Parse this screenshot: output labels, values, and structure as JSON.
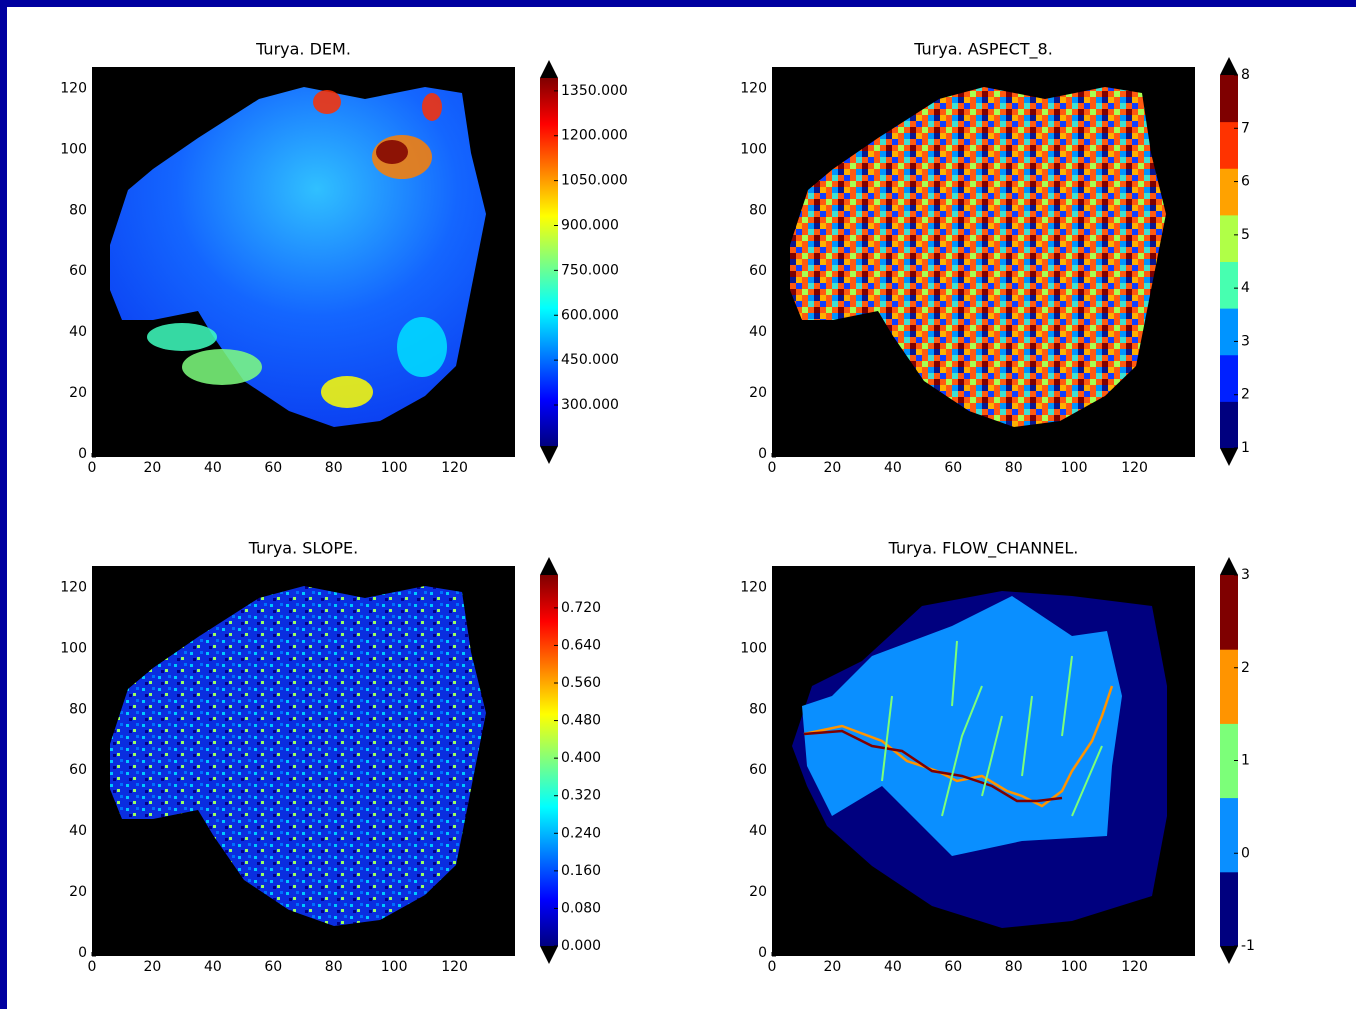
{
  "chart_data": [
    {
      "type": "heatmap",
      "title": "Turya. DEM.",
      "xlim": [
        0,
        140
      ],
      "ylim": [
        0,
        128
      ],
      "xticks": [
        0,
        20,
        40,
        60,
        80,
        100,
        120
      ],
      "yticks": [
        0,
        20,
        40,
        60,
        80,
        100,
        120
      ],
      "colorbar": {
        "lim": [
          163,
          1393
        ],
        "discrete": false,
        "colors": [
          "#00007f",
          "#0000ff",
          "#007fff",
          "#00ffff",
          "#7fff7f",
          "#ffff00",
          "#ff7f00",
          "#ff0000",
          "#7f0000"
        ],
        "ticks": [
          {
            "value": 300,
            "label": "300.000"
          },
          {
            "value": 450,
            "label": "450.000"
          },
          {
            "value": 600,
            "label": "600.000"
          },
          {
            "value": 750,
            "label": "750.000"
          },
          {
            "value": 900,
            "label": "900.000"
          },
          {
            "value": 1050,
            "label": "1050.000"
          },
          {
            "value": 1200,
            "label": "1200.000"
          },
          {
            "value": 1350,
            "label": "1350.000"
          }
        ]
      }
    },
    {
      "type": "heatmap",
      "title": "Turya. ASPECT_8.",
      "xlim": [
        0,
        140
      ],
      "ylim": [
        0,
        128
      ],
      "xticks": [
        0,
        20,
        40,
        60,
        80,
        100,
        120
      ],
      "yticks": [
        0,
        20,
        40,
        60,
        80,
        100,
        120
      ],
      "colorbar": {
        "lim": [
          1,
          8
        ],
        "discrete": true,
        "colors": [
          "#00007f",
          "#0020ff",
          "#0094ff",
          "#47ffb0",
          "#b0ff47",
          "#ffa200",
          "#ff3300",
          "#7f0000"
        ],
        "ticks": [
          1,
          2,
          3,
          4,
          5,
          6,
          7,
          8
        ]
      }
    },
    {
      "type": "heatmap",
      "title": "Turya. SLOPE.",
      "xlim": [
        0,
        140
      ],
      "ylim": [
        0,
        128
      ],
      "xticks": [
        0,
        20,
        40,
        60,
        80,
        100,
        120
      ],
      "yticks": [
        0,
        20,
        40,
        60,
        80,
        100,
        120
      ],
      "colorbar": {
        "lim": [
          0,
          0.79
        ],
        "discrete": false,
        "colors": [
          "#00007f",
          "#0000ff",
          "#007fff",
          "#00ffff",
          "#7fff7f",
          "#ffff00",
          "#ff7f00",
          "#ff0000",
          "#7f0000"
        ],
        "ticks": [
          {
            "value": 0,
            "label": "0.000"
          },
          {
            "value": 0.08,
            "label": "0.080"
          },
          {
            "value": 0.16,
            "label": "0.160"
          },
          {
            "value": 0.24,
            "label": "0.240"
          },
          {
            "value": 0.32,
            "label": "0.320"
          },
          {
            "value": 0.4,
            "label": "0.400"
          },
          {
            "value": 0.48,
            "label": "0.480"
          },
          {
            "value": 0.56,
            "label": "0.560"
          },
          {
            "value": 0.64,
            "label": "0.640"
          },
          {
            "value": 0.72,
            "label": "0.720"
          }
        ]
      }
    },
    {
      "type": "heatmap",
      "title": "Turya. FLOW_CHANNEL.",
      "xlim": [
        0,
        140
      ],
      "ylim": [
        0,
        128
      ],
      "xticks": [
        0,
        20,
        40,
        60,
        80,
        100,
        120
      ],
      "yticks": [
        0,
        20,
        40,
        60,
        80,
        100,
        120
      ],
      "colorbar": {
        "lim": [
          -1,
          3
        ],
        "discrete": true,
        "colors": [
          "#00007f",
          "#0a8fff",
          "#7cff79",
          "#ff9400",
          "#7f0000"
        ],
        "ticks": [
          -1,
          0,
          1,
          2,
          3
        ]
      }
    }
  ]
}
